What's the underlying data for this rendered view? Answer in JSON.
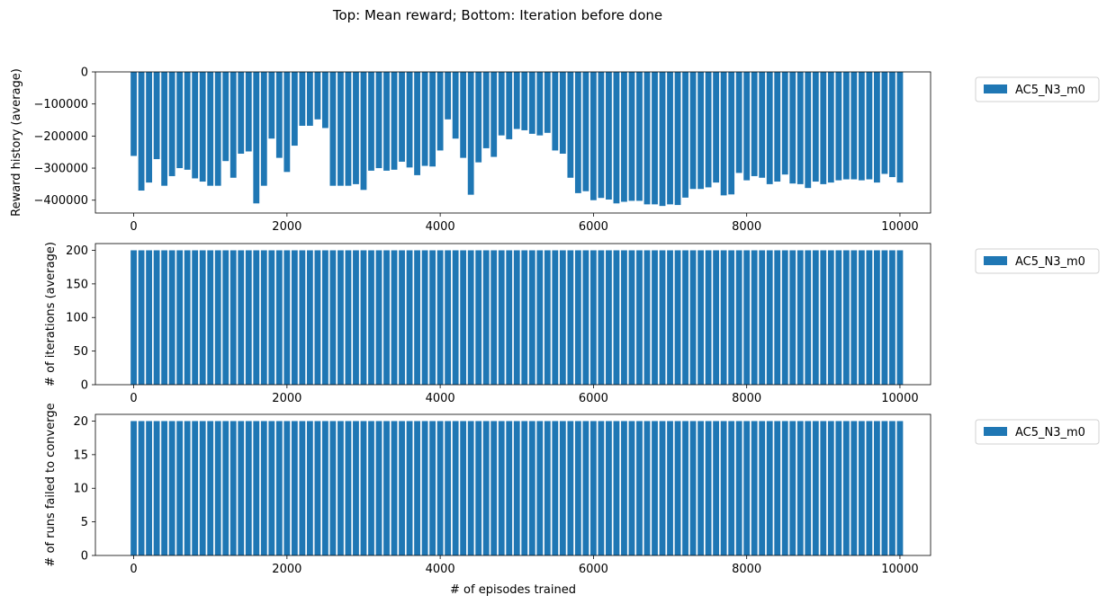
{
  "figure": {
    "title": "Top: Mean reward; Bottom: Iteration before done",
    "bar_color": "#1f77b4"
  },
  "chart_data": [
    {
      "type": "bar",
      "ylabel": "Reward history (average)",
      "xlabel": "",
      "xlim": [
        -500,
        10400
      ],
      "ylim": [
        -440000,
        0
      ],
      "xticks": [
        0,
        2000,
        4000,
        6000,
        8000,
        10000
      ],
      "yticks": [
        0,
        -100000,
        -200000,
        -300000,
        -400000
      ],
      "ytick_labels": [
        "0",
        "−100000",
        "−200000",
        "−300000",
        "−400000"
      ],
      "bar_width": 80,
      "legend": {
        "position": "outside-right",
        "entries": [
          "AC5_N3_m0"
        ]
      },
      "series": [
        {
          "name": "AC5_N3_m0",
          "x_start": 0,
          "x_step": 100,
          "values": [
            -262000,
            -370000,
            -345000,
            -272000,
            -355000,
            -325000,
            -300000,
            -305000,
            -332000,
            -342000,
            -355000,
            -355000,
            -278000,
            -330000,
            -255000,
            -248000,
            -410000,
            -355000,
            -208000,
            -268000,
            -312000,
            -230000,
            -168000,
            -168000,
            -148000,
            -175000,
            -355000,
            -355000,
            -355000,
            -350000,
            -368000,
            -308000,
            -300000,
            -308000,
            -305000,
            -280000,
            -298000,
            -322000,
            -293000,
            -295000,
            -245000,
            -148000,
            -208000,
            -268000,
            -383000,
            -282000,
            -238000,
            -265000,
            -198000,
            -210000,
            -178000,
            -182000,
            -193000,
            -198000,
            -190000,
            -245000,
            -255000,
            -330000,
            -378000,
            -372000,
            -400000,
            -393000,
            -398000,
            -410000,
            -405000,
            -402000,
            -402000,
            -413000,
            -413000,
            -418000,
            -413000,
            -415000,
            -392000,
            -365000,
            -365000,
            -360000,
            -345000,
            -385000,
            -382000,
            -315000,
            -338000,
            -325000,
            -330000,
            -350000,
            -342000,
            -320000,
            -348000,
            -350000,
            -362000,
            -342000,
            -350000,
            -345000,
            -338000,
            -335000,
            -335000,
            -338000,
            -335000,
            -345000,
            -318000,
            -328000,
            -345000
          ]
        }
      ]
    },
    {
      "type": "bar",
      "ylabel": "# of iterations (average)",
      "xlabel": "",
      "xlim": [
        -500,
        10400
      ],
      "ylim": [
        0,
        210
      ],
      "xticks": [
        0,
        2000,
        4000,
        6000,
        8000,
        10000
      ],
      "yticks": [
        0,
        50,
        100,
        150,
        200
      ],
      "bar_width": 80,
      "legend": {
        "position": "outside-right",
        "entries": [
          "AC5_N3_m0"
        ]
      },
      "series": [
        {
          "name": "AC5_N3_m0",
          "x_start": 0,
          "x_step": 100,
          "count": 101,
          "constant_value": 200
        }
      ]
    },
    {
      "type": "bar",
      "ylabel": "# of runs failed to converge",
      "xlabel": "# of episodes trained",
      "xlim": [
        -500,
        10400
      ],
      "ylim": [
        0,
        21
      ],
      "xticks": [
        0,
        2000,
        4000,
        6000,
        8000,
        10000
      ],
      "yticks": [
        0,
        5,
        10,
        15,
        20
      ],
      "bar_width": 80,
      "legend": {
        "position": "outside-right",
        "entries": [
          "AC5_N3_m0"
        ]
      },
      "series": [
        {
          "name": "AC5_N3_m0",
          "x_start": 0,
          "x_step": 100,
          "count": 101,
          "constant_value": 20
        }
      ]
    }
  ]
}
